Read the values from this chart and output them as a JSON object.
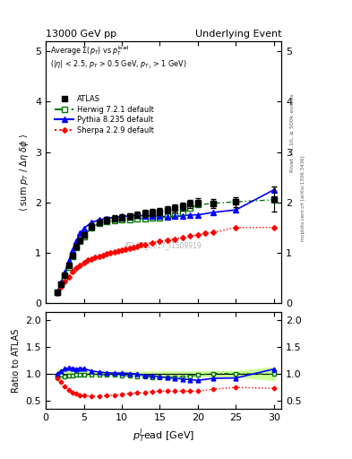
{
  "title_left": "13000 GeV pp",
  "title_right": "Underlying Event",
  "right_label": "Rivet 3.1.10, ≥ 500k events",
  "arxiv_label": "mcplots.cern.ch [arXiv:1306.3436]",
  "watermark": "ATLAS_2017_I1509919",
  "xlabel": "p_T^{l}ead [GeV]",
  "ylabel_main": "⟨ sum p_T / Δη deltaϕ ⟩",
  "ylabel_ratio": "Ratio to ATLAS",
  "xlim": [
    1,
    31
  ],
  "ylim_main": [
    0,
    5.2
  ],
  "ylim_ratio": [
    0.35,
    2.15
  ],
  "atlas_x": [
    1.5,
    2.0,
    2.5,
    3.0,
    3.5,
    4.0,
    4.5,
    5.0,
    6.0,
    7.0,
    8.0,
    9.0,
    10.0,
    11.0,
    12.0,
    13.0,
    14.0,
    15.0,
    16.0,
    17.0,
    18.0,
    19.0,
    20.0,
    22.0,
    25.0,
    30.0
  ],
  "atlas_y": [
    0.22,
    0.38,
    0.55,
    0.75,
    0.95,
    1.12,
    1.25,
    1.35,
    1.52,
    1.6,
    1.65,
    1.68,
    1.7,
    1.72,
    1.75,
    1.78,
    1.8,
    1.82,
    1.85,
    1.88,
    1.92,
    1.97,
    2.0,
    1.97,
    2.01,
    2.07
  ],
  "atlas_yerr": [
    0.02,
    0.03,
    0.03,
    0.04,
    0.04,
    0.05,
    0.05,
    0.05,
    0.06,
    0.06,
    0.06,
    0.06,
    0.06,
    0.06,
    0.06,
    0.07,
    0.07,
    0.07,
    0.07,
    0.08,
    0.08,
    0.08,
    0.08,
    0.09,
    0.1,
    0.25
  ],
  "herwig_x": [
    1.5,
    2.0,
    2.5,
    3.0,
    3.5,
    4.0,
    4.5,
    5.0,
    6.0,
    7.0,
    8.0,
    9.0,
    10.0,
    11.0,
    12.0,
    13.0,
    14.0,
    15.0,
    16.0,
    17.0,
    18.0,
    19.0,
    20.0,
    22.0,
    25.0,
    30.0
  ],
  "herwig_y": [
    0.21,
    0.37,
    0.52,
    0.72,
    0.92,
    1.1,
    1.22,
    1.32,
    1.5,
    1.58,
    1.62,
    1.64,
    1.65,
    1.65,
    1.67,
    1.68,
    1.69,
    1.7,
    1.72,
    1.75,
    1.8,
    1.88,
    1.95,
    1.98,
    2.01,
    2.05
  ],
  "pythia_x": [
    1.5,
    2.0,
    2.5,
    3.0,
    3.5,
    4.0,
    4.5,
    5.0,
    6.0,
    7.0,
    8.0,
    9.0,
    10.0,
    11.0,
    12.0,
    13.0,
    14.0,
    15.0,
    16.0,
    17.0,
    18.0,
    19.0,
    20.0,
    22.0,
    25.0,
    30.0
  ],
  "pythia_y": [
    0.22,
    0.4,
    0.6,
    0.83,
    1.05,
    1.22,
    1.38,
    1.48,
    1.6,
    1.65,
    1.68,
    1.7,
    1.72,
    1.73,
    1.74,
    1.73,
    1.73,
    1.72,
    1.71,
    1.72,
    1.73,
    1.75,
    1.75,
    1.8,
    1.85,
    2.25
  ],
  "sherpa_x": [
    1.5,
    2.0,
    2.5,
    3.0,
    3.5,
    4.0,
    4.5,
    5.0,
    5.5,
    6.0,
    6.5,
    7.0,
    7.5,
    8.0,
    8.5,
    9.0,
    9.5,
    10.0,
    10.5,
    11.0,
    11.5,
    12.0,
    12.5,
    13.0,
    14.0,
    15.0,
    16.0,
    17.0,
    18.0,
    19.0,
    20.0,
    21.0,
    22.0,
    25.0,
    30.0
  ],
  "sherpa_y": [
    0.2,
    0.32,
    0.42,
    0.52,
    0.62,
    0.7,
    0.75,
    0.8,
    0.85,
    0.88,
    0.9,
    0.93,
    0.95,
    0.97,
    0.99,
    1.01,
    1.03,
    1.05,
    1.07,
    1.09,
    1.1,
    1.12,
    1.15,
    1.16,
    1.2,
    1.23,
    1.25,
    1.27,
    1.3,
    1.33,
    1.35,
    1.38,
    1.4,
    1.5,
    1.5
  ],
  "atlas_color": "#000000",
  "herwig_color": "#007700",
  "pythia_color": "#0000ff",
  "sherpa_color": "#ff0000",
  "band_color": "#ccff99",
  "yticks_main": [
    0,
    1,
    2,
    3,
    4,
    5
  ],
  "yticks_ratio": [
    0.5,
    1.0,
    1.5,
    2.0
  ],
  "xticks": [
    0,
    5,
    10,
    15,
    20,
    25,
    30
  ]
}
